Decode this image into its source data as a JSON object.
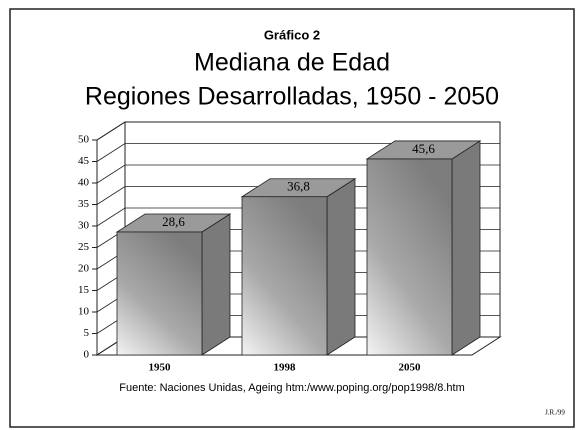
{
  "chart_data": {
    "type": "bar3d",
    "kicker": "Gráfico 2",
    "title": "Mediana de Edad",
    "subtitle": "Regiones Desarrolladas, 1950 - 2050",
    "categories": [
      "1950",
      "1998",
      "2050"
    ],
    "values": [
      28.6,
      36.8,
      45.6
    ],
    "value_labels": [
      "28,6",
      "36,8",
      "45,6"
    ],
    "color": "#8c8c8c",
    "ylim": [
      0,
      50
    ],
    "yticks": [
      0,
      5,
      10,
      15,
      20,
      25,
      30,
      35,
      40,
      45,
      50
    ],
    "grid": true,
    "source": "Fuente: Naciones Unidas, Ageing htm:/www.poping.org/pop1998/8.htm",
    "signature": "J.R./99"
  }
}
